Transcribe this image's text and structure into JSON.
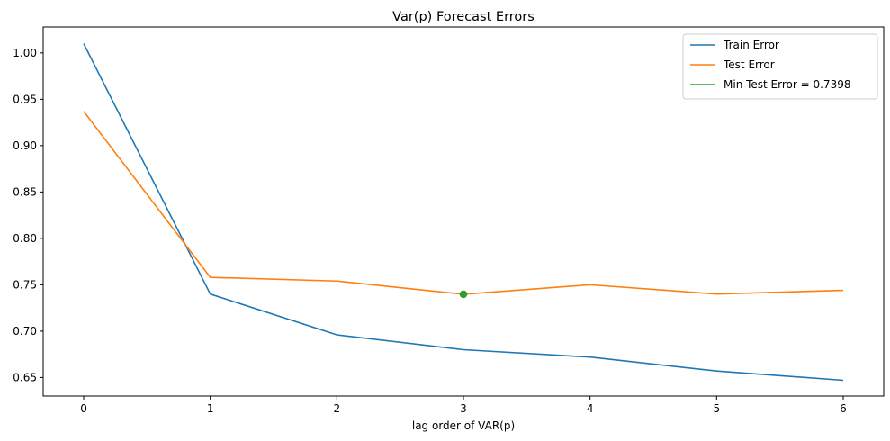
{
  "chart_data": {
    "type": "line",
    "title": "Var(p) Forecast Errors",
    "xlabel": "lag order of VAR(p)",
    "ylabel": "",
    "x": [
      0,
      1,
      2,
      3,
      4,
      5,
      6
    ],
    "xlim": [
      -0.32,
      6.32
    ],
    "ylim": [
      0.63,
      1.028
    ],
    "xticks": [
      0,
      1,
      2,
      3,
      4,
      5,
      6
    ],
    "yticks": [
      0.65,
      0.7,
      0.75,
      0.8,
      0.85,
      0.9,
      0.95,
      1.0
    ],
    "ytick_labels": [
      "0.65",
      "0.70",
      "0.75",
      "0.80",
      "0.85",
      "0.90",
      "0.95",
      "1.00"
    ],
    "grid": false,
    "legend_placement": "top-right",
    "series": [
      {
        "name": "Train Error",
        "color": "#1f77b4",
        "values": [
          1.01,
          0.74,
          0.696,
          0.68,
          0.672,
          0.657,
          0.647
        ]
      },
      {
        "name": "Test Error",
        "color": "#ff7f0e",
        "values": [
          0.937,
          0.758,
          0.754,
          0.7398,
          0.75,
          0.74,
          0.744
        ]
      }
    ],
    "min_point": {
      "name": "Min Test Error = 0.7398",
      "color": "#2ca02c",
      "x": 3,
      "y": 0.7398
    }
  }
}
